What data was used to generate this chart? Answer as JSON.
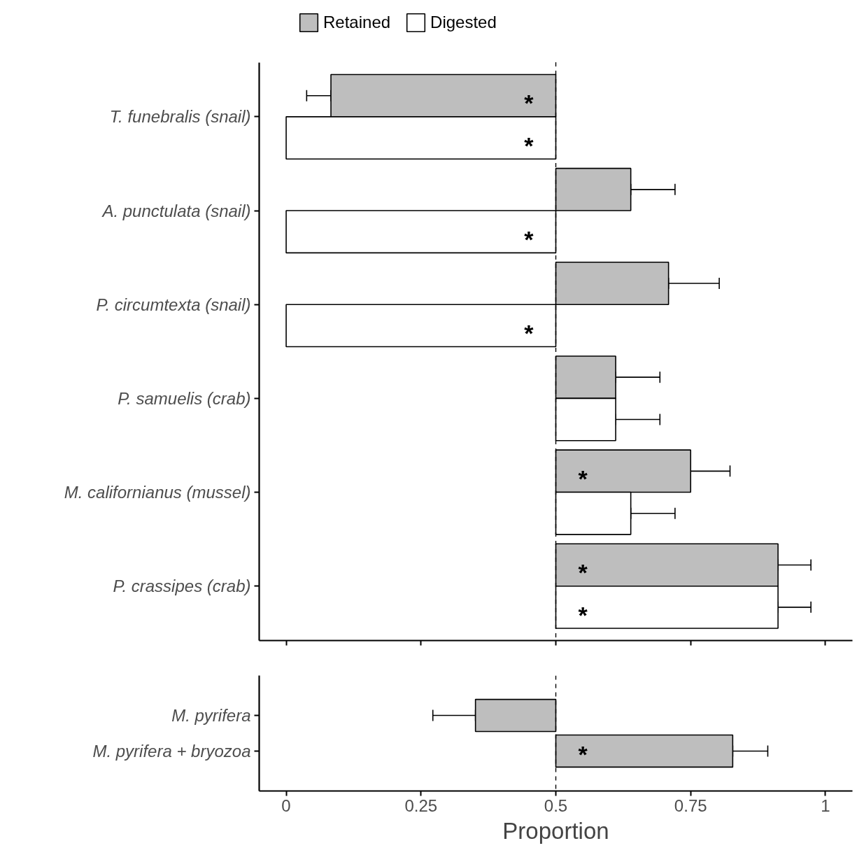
{
  "chart_data": [
    {
      "type": "bar",
      "orientation": "horizontal",
      "categories": [
        "T. funebralis (snail)",
        "A. punctulata (snail)",
        "P. circumtexta (snail)",
        "P. samuelis (crab)",
        "M. californianus (mussel)",
        "P. crassipes (crab)"
      ],
      "series": [
        {
          "name": "Retained",
          "color": "#bebebe",
          "base": [
            0.5,
            0.5,
            0.5,
            0.5,
            0.5,
            0.5
          ],
          "values": [
            -0.417,
            0.139,
            0.209,
            0.111,
            0.25,
            0.412
          ],
          "errors": [
            [
              0.038,
              0.083
            ],
            [
              0.639,
              0.721
            ],
            [
              0.709,
              0.803
            ],
            [
              0.611,
              0.693
            ],
            [
              0.75,
              0.823
            ],
            [
              0.912,
              0.973
            ]
          ],
          "value_labels": [
            "*",
            null,
            null,
            null,
            "*",
            "*"
          ]
        },
        {
          "name": "Digested",
          "color": "#ffffff",
          "base": [
            0.5,
            0.5,
            0.5,
            0.5,
            0.5,
            0.5
          ],
          "values": [
            -0.5,
            -0.5,
            -0.5,
            0.111,
            0.139,
            0.412
          ],
          "errors": [
            null,
            null,
            null,
            [
              0.611,
              0.693
            ],
            [
              0.639,
              0.721
            ],
            [
              0.912,
              0.973
            ]
          ],
          "value_labels": [
            "*",
            "*",
            "*",
            null,
            null,
            "*"
          ]
        }
      ],
      "xlim": [
        -0.05,
        1.05
      ],
      "xticks": [
        0,
        0.25,
        0.5,
        0.75,
        1
      ],
      "tick_labels": "y",
      "legend": "top",
      "grid": false,
      "ref_lines": [
        {
          "axis": "x",
          "value": 0.5,
          "line_style": "dashed"
        }
      ]
    },
    {
      "type": "bar",
      "orientation": "horizontal",
      "categories": [
        "M. pyrifera",
        "M. pyrifera + bryozoa"
      ],
      "series": [
        {
          "color": "#bebebe",
          "base": [
            0.5,
            0.5
          ],
          "values": [
            -0.149,
            0.328
          ],
          "errors": [
            [
              0.272,
              0.351
            ],
            [
              0.828,
              0.893
            ]
          ],
          "value_labels": [
            null,
            "*"
          ]
        }
      ],
      "xlim": [
        -0.05,
        1.05
      ],
      "xticks": [
        0,
        0.25,
        0.5,
        0.75,
        1
      ],
      "xlabel": "Proportion",
      "grid": false,
      "ref_lines": [
        {
          "axis": "x",
          "value": 0.5,
          "line_style": "dashed"
        }
      ]
    }
  ]
}
